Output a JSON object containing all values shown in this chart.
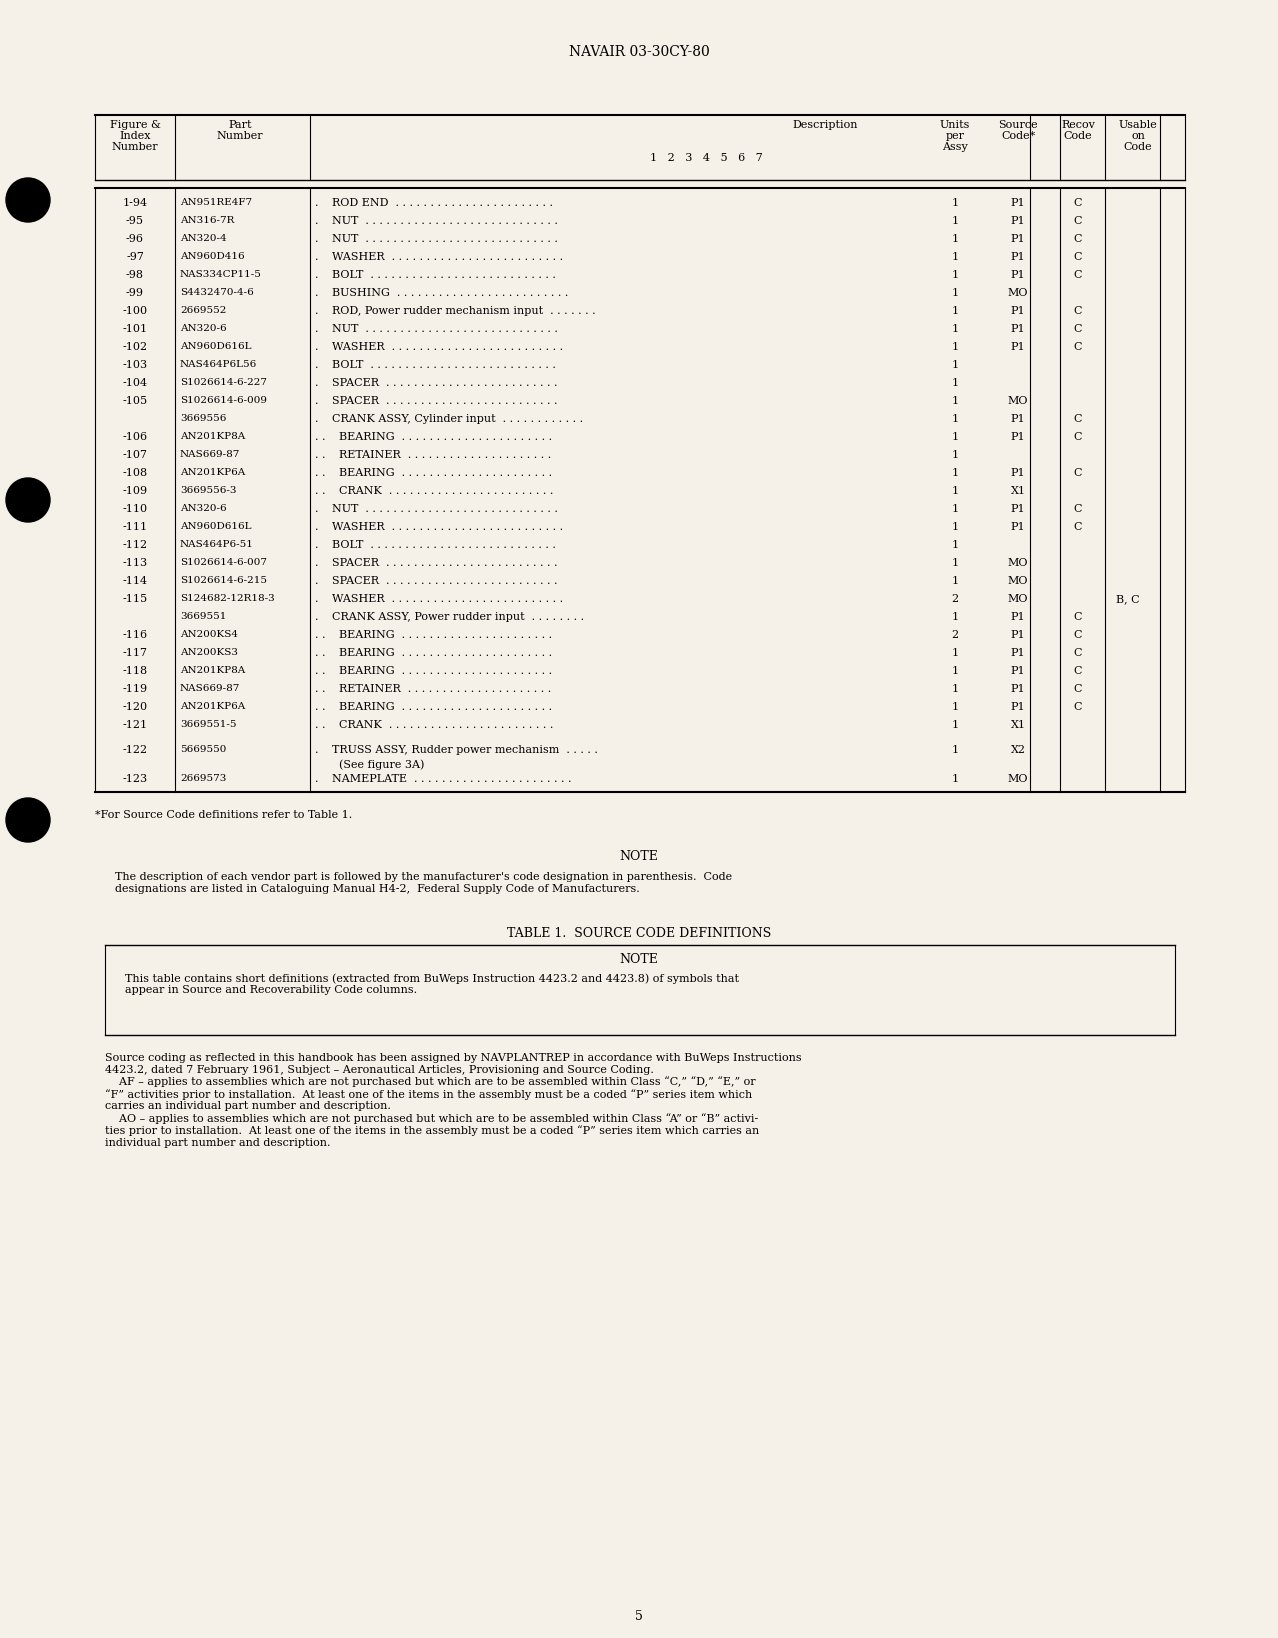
{
  "page_header": "NAVAIR 03-30CY-80",
  "page_number": "5",
  "bg_color": "#f5f0e8",
  "table_header": [
    "Figure &\nIndex\nNumber",
    "Part\nNumber",
    "Description\n1  2  3  4  5  6  7",
    "Units\nper\nAssy",
    "Source\nCode*",
    "Recov\nCode",
    "Usable\non\nCode"
  ],
  "table_rows": [
    [
      "1-94",
      "AN951RE4F7",
      ".",
      "ROD END  . . . . . . . . . . . . . . . . . . . . . . .",
      "1",
      "P1",
      "C",
      ""
    ],
    [
      "-95",
      "AN316-7R",
      ".",
      "NUT  . . . . . . . . . . . . . . . . . . . . . . . . . . . .",
      "1",
      "P1",
      "C",
      ""
    ],
    [
      "-96",
      "AN320-4",
      ".",
      "NUT  . . . . . . . . . . . . . . . . . . . . . . . . . . . .",
      "1",
      "P1",
      "C",
      ""
    ],
    [
      "-97",
      "AN960D416",
      ".",
      "WASHER  . . . . . . . . . . . . . . . . . . . . . . . . .",
      "1",
      "P1",
      "C",
      ""
    ],
    [
      "-98",
      "NAS334CP11-5",
      ".",
      "BOLT  . . . . . . . . . . . . . . . . . . . . . . . . . . .",
      "1",
      "P1",
      "C",
      ""
    ],
    [
      "-99",
      "S4432470-4-6",
      ".",
      "BUSHING  . . . . . . . . . . . . . . . . . . . . . . . . .",
      "1",
      "MO",
      "",
      ""
    ],
    [
      "-100",
      "2669552",
      ".",
      "ROD, Power rudder mechanism input  . . . . . . .",
      "1",
      "P1",
      "C",
      ""
    ],
    [
      "-101",
      "AN320-6",
      ".",
      "NUT  . . . . . . . . . . . . . . . . . . . . . . . . . . . .",
      "1",
      "P1",
      "C",
      ""
    ],
    [
      "-102",
      "AN960D616L",
      ".",
      "WASHER  . . . . . . . . . . . . . . . . . . . . . . . . .",
      "1",
      "P1",
      "C",
      ""
    ],
    [
      "-103",
      "NAS464P6L56",
      ".",
      "BOLT  . . . . . . . . . . . . . . . . . . . . . . . . . . .",
      "1",
      "",
      "",
      ""
    ],
    [
      "-104",
      "S1026614-6-227",
      ".",
      "SPACER  . . . . . . . . . . . . . . . . . . . . . . . . .",
      "1",
      "",
      "",
      ""
    ],
    [
      "-105",
      "S1026614-6-009",
      ".",
      "SPACER  . . . . . . . . . . . . . . . . . . . . . . . . .",
      "1",
      "MO",
      "",
      ""
    ],
    [
      "",
      "3669556",
      ".",
      "CRANK ASSY, Cylinder input  . . . . . . . . . . . .",
      "1",
      "P1",
      "C",
      ""
    ],
    [
      "-106",
      "AN201KP8A",
      ". .",
      "  BEARING  . . . . . . . . . . . . . . . . . . . . . .",
      "1",
      "P1",
      "C",
      ""
    ],
    [
      "-107",
      "NAS669-87",
      ". .",
      "  RETAINER  . . . . . . . . . . . . . . . . . . . . .",
      "1",
      "",
      "",
      ""
    ],
    [
      "-108",
      "AN201KP6A",
      ". .",
      "  BEARING  . . . . . . . . . . . . . . . . . . . . . .",
      "1",
      "P1",
      "C",
      ""
    ],
    [
      "-109",
      "3669556-3",
      ". .",
      "  CRANK  . . . . . . . . . . . . . . . . . . . . . . . .",
      "1",
      "X1",
      "",
      ""
    ],
    [
      "-110",
      "AN320-6",
      ".",
      "NUT  . . . . . . . . . . . . . . . . . . . . . . . . . . . .",
      "1",
      "P1",
      "C",
      ""
    ],
    [
      "-111",
      "AN960D616L",
      ".",
      "WASHER  . . . . . . . . . . . . . . . . . . . . . . . . .",
      "1",
      "P1",
      "C",
      ""
    ],
    [
      "-112",
      "NAS464P6-51",
      ".",
      "BOLT  . . . . . . . . . . . . . . . . . . . . . . . . . . .",
      "1",
      "",
      "",
      ""
    ],
    [
      "-113",
      "S1026614-6-007",
      ".",
      "SPACER  . . . . . . . . . . . . . . . . . . . . . . . . .",
      "1",
      "MO",
      "",
      ""
    ],
    [
      "-114",
      "S1026614-6-215",
      ".",
      "SPACER  . . . . . . . . . . . . . . . . . . . . . . . . .",
      "1",
      "MO",
      "",
      ""
    ],
    [
      "-115",
      "S124682-12R18-3",
      ".",
      "WASHER  . . . . . . . . . . . . . . . . . . . . . . . . .",
      "2",
      "MO",
      "",
      "B, C"
    ],
    [
      "",
      "3669551",
      ".",
      "CRANK ASSY, Power rudder input  . . . . . . . .",
      "1",
      "P1",
      "C",
      ""
    ],
    [
      "-116",
      "AN200KS4",
      ". .",
      "  BEARING  . . . . . . . . . . . . . . . . . . . . . .",
      "2",
      "P1",
      "C",
      ""
    ],
    [
      "-117",
      "AN200KS3",
      ". .",
      "  BEARING  . . . . . . . . . . . . . . . . . . . . . .",
      "1",
      "P1",
      "C",
      ""
    ],
    [
      "-118",
      "AN201KP8A",
      ". .",
      "  BEARING  . . . . . . . . . . . . . . . . . . . . . .",
      "1",
      "P1",
      "C",
      ""
    ],
    [
      "-119",
      "NAS669-87",
      ". .",
      "  RETAINER  . . . . . . . . . . . . . . . . . . . . .",
      "1",
      "P1",
      "C",
      ""
    ],
    [
      "-120",
      "AN201KP6A",
      ". .",
      "  BEARING  . . . . . . . . . . . . . . . . . . . . . .",
      "1",
      "P1",
      "C",
      ""
    ],
    [
      "-121",
      "3669551-5",
      ". .",
      "  CRANK  . . . . . . . . . . . . . . . . . . . . . . . .",
      "1",
      "X1",
      "",
      ""
    ],
    [
      "-122",
      "5669550",
      ".",
      "TRUSS ASSY, Rudder power mechanism  . . . . .\n  (See figure 3A)",
      "1",
      "X2",
      "",
      ""
    ],
    [
      "-123",
      "2669573",
      ".",
      "NAMEPLATE  . . . . . . . . . . . . . . . . . . . . . . .",
      "1",
      "MO",
      "",
      ""
    ]
  ],
  "footnote": "*For Source Code definitions refer to Table 1.",
  "note_title": "NOTE",
  "note_text": "The description of each vendor part is followed by the manufacturer's code designation in parenthesis.  Code\ndesignations are listed in Cataloguing Manual H4-2,  Federal Supply Code of Manufacturers.",
  "table2_title": "TABLE 1.  SOURCE CODE DEFINITIONS",
  "table2_note_title": "NOTE",
  "table2_note_text": "This table contains short definitions (extracted from BuWeps Instruction 4423.2 and 4423.8) of symbols that\nappear in Source and Recoverability Code columns.",
  "table2_body": "Source coding as reflected in this handbook has been assigned by NAVPLANTREP in accordance with BuWeps Instructions\n4423.2, dated 7 February 1961, Subject – Aeronautical Articles, Provisioning and Source Coding.\n    AF – applies to assemblies which are not purchased but which are to be assembled within Class “C,” “D,” “E,” or\n“F” activities prior to installation.  At least one of the items in the assembly must be a coded “P” series item which\ncarries an individual part number and description.\n    AO – applies to assemblies which are not purchased but which are to be assembled within Class “A” or “B” activi-\nties prior to installation.  At least one of the items in the assembly must be a coded “P” series item which carries an\nindividual part number and description."
}
